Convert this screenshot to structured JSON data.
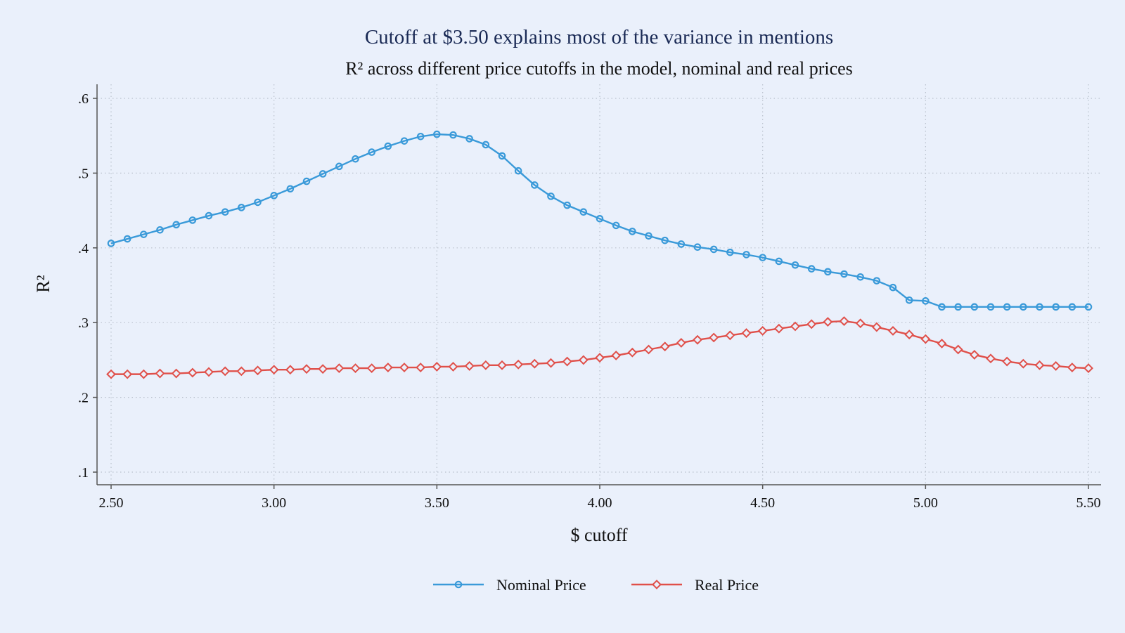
{
  "chart_data": {
    "type": "line",
    "title": "Cutoff at $3.50 explains most of the variance in mentions",
    "subtitle": "R² across different price cutoffs in the model, nominal and real prices",
    "xlabel": "$ cutoff",
    "ylabel": "R²",
    "xlim": [
      2.5,
      5.5
    ],
    "ylim": [
      0.1,
      0.6
    ],
    "x_ticks": [
      "2.50",
      "3.00",
      "3.50",
      "4.00",
      "4.50",
      "5.00",
      "5.50"
    ],
    "y_ticks": [
      ".1",
      ".2",
      ".3",
      ".4",
      ".5",
      ".6"
    ],
    "grid": true,
    "legend_position": "bottom",
    "x": [
      2.5,
      2.55,
      2.6,
      2.65,
      2.7,
      2.75,
      2.8,
      2.85,
      2.9,
      2.95,
      3.0,
      3.05,
      3.1,
      3.15,
      3.2,
      3.25,
      3.3,
      3.35,
      3.4,
      3.45,
      3.5,
      3.55,
      3.6,
      3.65,
      3.7,
      3.75,
      3.8,
      3.85,
      3.9,
      3.95,
      4.0,
      4.05,
      4.1,
      4.15,
      4.2,
      4.25,
      4.3,
      4.35,
      4.4,
      4.45,
      4.5,
      4.55,
      4.6,
      4.65,
      4.7,
      4.75,
      4.8,
      4.85,
      4.9,
      4.95,
      5.0,
      5.05,
      5.1,
      5.15,
      5.2,
      5.25,
      5.3,
      5.35,
      5.4,
      5.45,
      5.5
    ],
    "series": [
      {
        "name": "Nominal Price",
        "color": "#3a9ad9",
        "marker": "circle",
        "values": [
          0.406,
          0.412,
          0.418,
          0.424,
          0.431,
          0.437,
          0.443,
          0.448,
          0.454,
          0.461,
          0.47,
          0.479,
          0.489,
          0.499,
          0.509,
          0.519,
          0.528,
          0.536,
          0.543,
          0.549,
          0.552,
          0.551,
          0.546,
          0.538,
          0.523,
          0.503,
          0.484,
          0.469,
          0.457,
          0.448,
          0.439,
          0.43,
          0.422,
          0.416,
          0.41,
          0.405,
          0.401,
          0.398,
          0.394,
          0.391,
          0.387,
          0.382,
          0.377,
          0.372,
          0.368,
          0.365,
          0.361,
          0.356,
          0.347,
          0.33,
          0.329,
          0.321,
          0.321,
          0.321,
          0.321,
          0.321,
          0.321,
          0.321,
          0.321,
          0.321,
          0.321
        ]
      },
      {
        "name": "Real Price",
        "color": "#e0504a",
        "marker": "diamond",
        "values": [
          0.231,
          0.231,
          0.231,
          0.232,
          0.232,
          0.233,
          0.234,
          0.235,
          0.235,
          0.236,
          0.237,
          0.237,
          0.238,
          0.238,
          0.239,
          0.239,
          0.239,
          0.24,
          0.24,
          0.24,
          0.241,
          0.241,
          0.242,
          0.243,
          0.243,
          0.244,
          0.245,
          0.246,
          0.248,
          0.25,
          0.253,
          0.256,
          0.26,
          0.264,
          0.268,
          0.273,
          0.277,
          0.28,
          0.283,
          0.286,
          0.289,
          0.292,
          0.295,
          0.298,
          0.301,
          0.302,
          0.299,
          0.294,
          0.289,
          0.284,
          0.278,
          0.272,
          0.264,
          0.257,
          0.252,
          0.248,
          0.245,
          0.243,
          0.242,
          0.24,
          0.239
        ]
      }
    ]
  }
}
